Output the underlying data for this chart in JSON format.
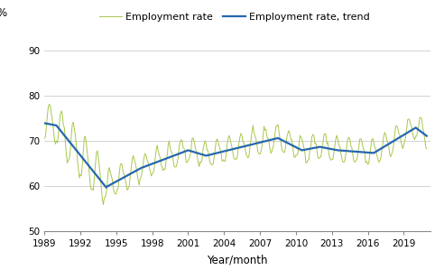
{
  "ylabel": "%",
  "xlabel": "Year/month",
  "ylim": [
    50,
    92
  ],
  "yticks": [
    50,
    60,
    70,
    80,
    90
  ],
  "xlim_start": 1989.0,
  "xlim_end": 2021.25,
  "xtick_years": [
    1989,
    1992,
    1995,
    1998,
    2001,
    2004,
    2007,
    2010,
    2013,
    2016,
    2019
  ],
  "employment_color": "#a8c84a",
  "trend_color": "#2666b0",
  "employment_label": "Employment rate",
  "trend_label": "Employment rate, trend",
  "employment_linewidth": 0.7,
  "trend_linewidth": 1.6,
  "grid_color": "#c0c0c0",
  "grid_linewidth": 0.5,
  "tick_fontsize": 7.5,
  "label_fontsize": 8.5,
  "legend_fontsize": 8.0
}
